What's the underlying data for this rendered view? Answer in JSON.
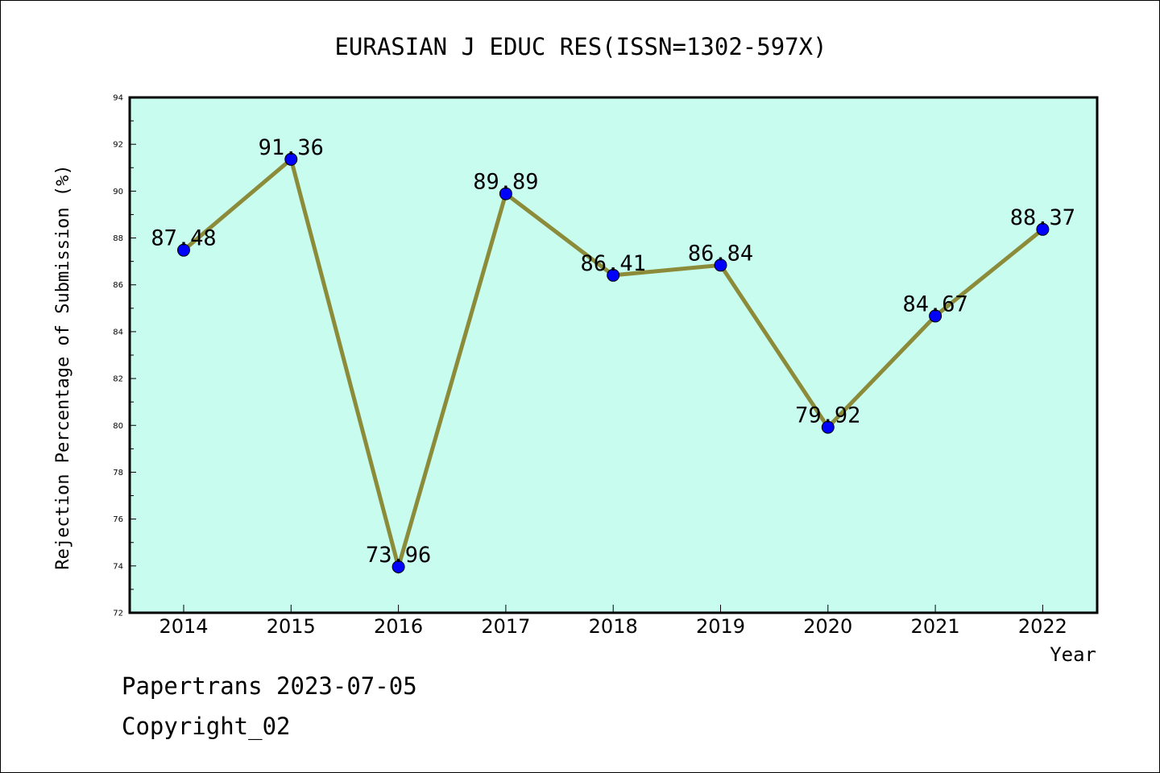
{
  "chart_data": {
    "type": "line",
    "title": "EURASIAN J EDUC RES(ISSN=1302-597X)",
    "xlabel": "Year",
    "ylabel": "Rejection Percentage of Submission (%)",
    "categories": [
      "2014",
      "2015",
      "2016",
      "2017",
      "2018",
      "2019",
      "2020",
      "2021",
      "2022"
    ],
    "series": [
      {
        "values": [
          87.48,
          91.36,
          73.96,
          89.89,
          86.41,
          86.84,
          79.92,
          84.67,
          88.37
        ],
        "labels": [
          "87.48",
          "91.36",
          "73.96",
          "89.89",
          "86.41",
          "86.84",
          "79.92",
          "84.67",
          "88.37"
        ]
      }
    ],
    "ylim": [
      72,
      94
    ],
    "yticks": [
      "72",
      "74",
      "76",
      "78",
      "80",
      "82",
      "84",
      "86",
      "88",
      "90",
      "92",
      "94"
    ],
    "grid": false,
    "colors": {
      "plot_background": "#c8fcee",
      "line": "#8b8b3a",
      "marker": "#0000ff"
    }
  },
  "footer": {
    "line1": "Papertrans 2023-07-05",
    "line2": "Copyright_02"
  }
}
